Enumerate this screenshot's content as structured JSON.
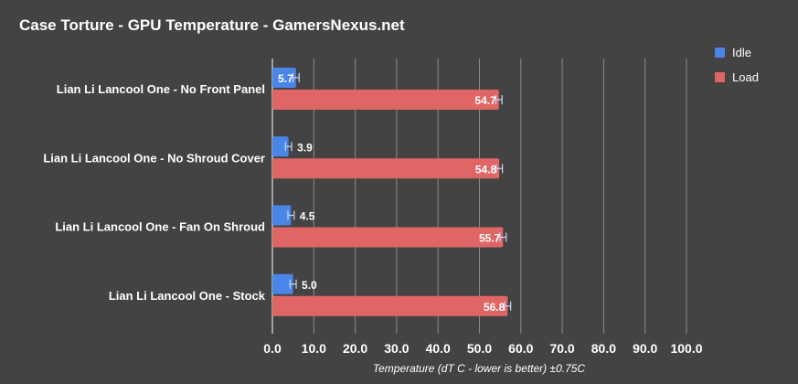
{
  "chart_data": {
    "type": "bar",
    "orientation": "horizontal",
    "title": "Case Torture - GPU Temperature - GamersNexus.net",
    "xlabel": "Temperature (dT C - lower is better) ±0.75C",
    "xlim": [
      0,
      100
    ],
    "xticks": [
      "0.0",
      "10.0",
      "20.0",
      "30.0",
      "40.0",
      "50.0",
      "60.0",
      "70.0",
      "80.0",
      "90.0",
      "100.0"
    ],
    "grid": true,
    "legend_position": "top-right",
    "error": 0.75,
    "categories": [
      "Lian Li Lancool One - No Front Panel",
      "Lian Li Lancool One - No Shroud Cover",
      "Lian Li Lancool One - Fan On Shroud",
      "Lian Li Lancool One - Stock"
    ],
    "series": [
      {
        "name": "Idle",
        "color": "#4a86e8",
        "values": [
          5.7,
          3.9,
          4.5,
          5.0
        ],
        "labels": [
          "5.7",
          "3.9",
          "4.5",
          "5.0"
        ]
      },
      {
        "name": "Load",
        "color": "#e06666",
        "values": [
          54.7,
          54.8,
          55.7,
          56.8
        ],
        "labels": [
          "54.7",
          "54.8",
          "55.7",
          "56.8"
        ]
      }
    ]
  }
}
